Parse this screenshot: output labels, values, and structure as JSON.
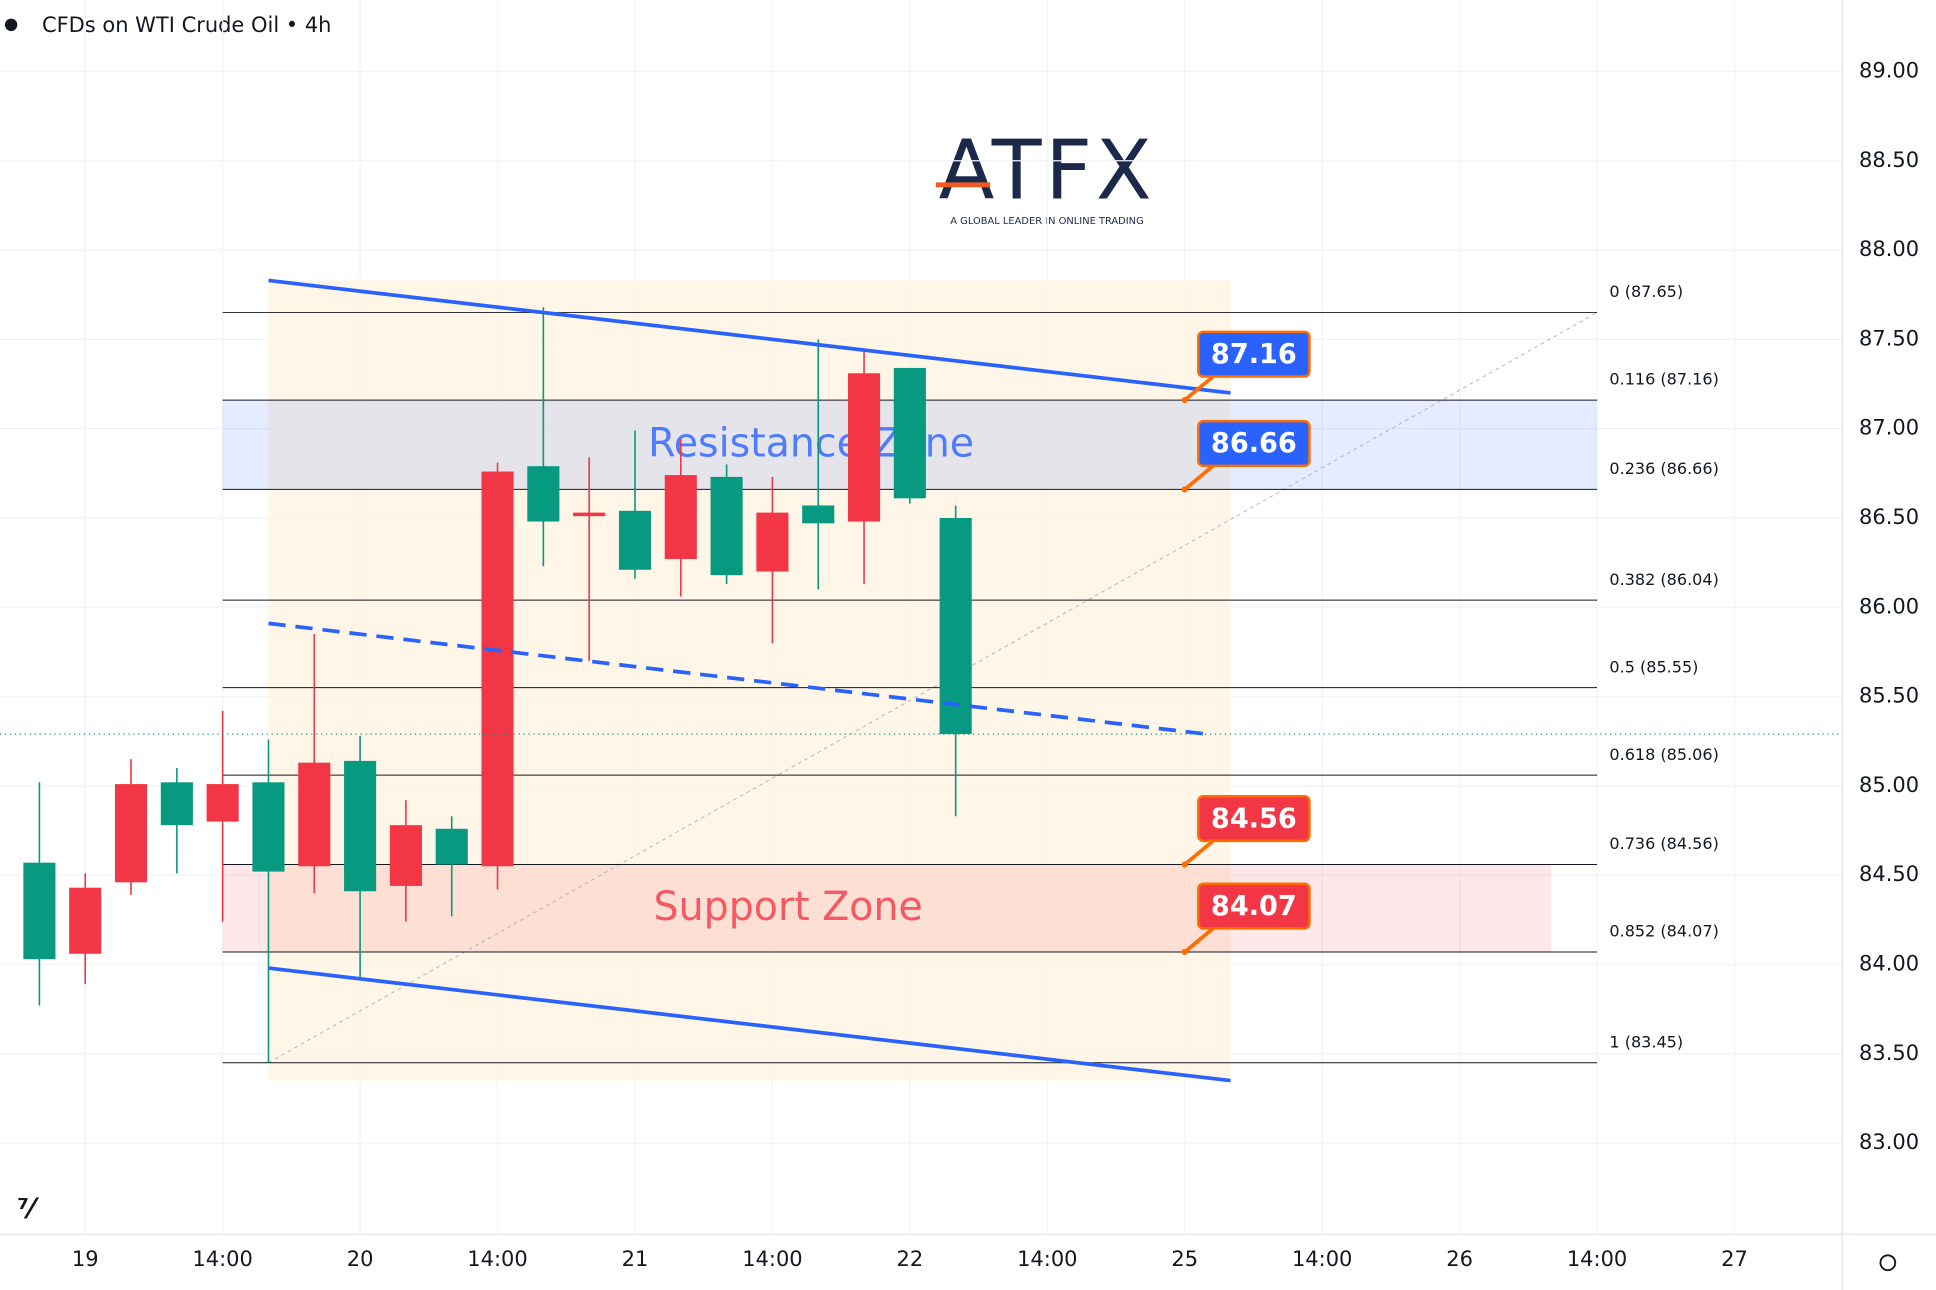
{
  "chart_data": {
    "type": "candlestick",
    "title": "CFDs on WTI Crude Oil • 4h",
    "logo": {
      "title": "ATFX",
      "tagline": "A GLOBAL LEADER IN ONLINE TRADING"
    },
    "xlim": [
      -0.86,
      39.35
    ],
    "ylim": [
      82.49,
      89.4
    ],
    "xticks": [
      {
        "value": 1,
        "label": "19"
      },
      {
        "value": 4,
        "label": "14:00"
      },
      {
        "value": 7,
        "label": "20"
      },
      {
        "value": 10,
        "label": "14:00"
      },
      {
        "value": 13,
        "label": "21"
      },
      {
        "value": 16,
        "label": "14:00"
      },
      {
        "value": 19,
        "label": "22"
      },
      {
        "value": 22,
        "label": "14:00"
      },
      {
        "value": 25,
        "label": "25"
      },
      {
        "value": 28,
        "label": "14:00"
      },
      {
        "value": 31,
        "label": "26"
      },
      {
        "value": 34,
        "label": "14:00"
      },
      {
        "value": 37,
        "label": "27"
      }
    ],
    "yticks": [
      {
        "value": 83,
        "label": "83.00"
      },
      {
        "value": 83.5,
        "label": "83.50"
      },
      {
        "value": 84,
        "label": "84.00"
      },
      {
        "value": 84.5,
        "label": "84.50"
      },
      {
        "value": 85,
        "label": "85.00"
      },
      {
        "value": 85.5,
        "label": "85.50"
      },
      {
        "value": 86,
        "label": "86.00"
      },
      {
        "value": 86.5,
        "label": "86.50"
      },
      {
        "value": 87,
        "label": "87.00"
      },
      {
        "value": 87.5,
        "label": "87.50"
      },
      {
        "value": 88,
        "label": "88.00"
      },
      {
        "value": 88.5,
        "label": "88.50"
      },
      {
        "value": 89,
        "label": "89.00"
      }
    ],
    "up_color": "#089981",
    "down_color": "#f23645",
    "candles": {
      "x": [
        0,
        1,
        2,
        3,
        4,
        5,
        6,
        7,
        8,
        9,
        10,
        11,
        12,
        13,
        14,
        15,
        16,
        17,
        18,
        19,
        20
      ],
      "open": [
        84.03,
        84.43,
        85.01,
        84.78,
        85.01,
        84.52,
        85.13,
        84.41,
        84.78,
        84.56,
        86.76,
        86.48,
        86.53,
        86.21,
        86.74,
        86.18,
        86.53,
        86.47,
        87.31,
        86.61,
        85.29
      ],
      "high": [
        85.02,
        84.51,
        85.15,
        85.1,
        85.42,
        85.26,
        85.85,
        85.28,
        84.92,
        84.83,
        86.81,
        87.68,
        86.84,
        86.99,
        86.94,
        86.8,
        86.73,
        87.5,
        87.44,
        87.34,
        86.57
      ],
      "low": [
        83.77,
        83.89,
        84.39,
        84.51,
        84.24,
        83.45,
        84.4,
        83.92,
        84.24,
        84.27,
        84.42,
        86.23,
        85.7,
        86.16,
        86.06,
        86.13,
        85.8,
        86.1,
        86.13,
        86.58,
        84.83
      ],
      "close": [
        84.57,
        84.06,
        84.46,
        85.02,
        84.8,
        85.02,
        84.55,
        85.14,
        84.44,
        84.76,
        84.55,
        86.79,
        86.51,
        86.54,
        86.27,
        86.73,
        86.2,
        86.57,
        86.48,
        87.34,
        86.5
      ]
    },
    "fib": {
      "x": [
        4,
        34
      ],
      "levels": [
        {
          "value": 87.65,
          "label": "0 (87.65)"
        },
        {
          "value": 87.16,
          "label": "0.116 (87.16)"
        },
        {
          "value": 86.66,
          "label": "0.236 (86.66)"
        },
        {
          "value": 86.04,
          "label": "0.382 (86.04)"
        },
        {
          "value": 85.55,
          "label": "0.5 (85.55)"
        },
        {
          "value": 85.06,
          "label": "0.618 (85.06)"
        },
        {
          "value": 84.56,
          "label": "0.736 (84.56)"
        },
        {
          "value": 84.07,
          "label": "0.852 (84.07)"
        },
        {
          "value": 83.45,
          "label": "1 (83.45)"
        }
      ]
    },
    "zones": [
      {
        "label": "Resistance Zone",
        "y": [
          86.66,
          87.16
        ],
        "x": [
          4,
          34
        ],
        "color": "#2962ff"
      },
      {
        "label": "Support Zone",
        "y": [
          84.07,
          84.56
        ],
        "x": [
          4,
          33
        ],
        "color": "#f23645"
      }
    ],
    "trendlines": [
      {
        "x": [
          5,
          26
        ],
        "y": [
          87.83,
          87.2
        ],
        "dashed": false
      },
      {
        "x": [
          5,
          25.47
        ],
        "y": [
          85.91,
          85.29
        ],
        "dashed": true
      },
      {
        "x": [
          5,
          26
        ],
        "y": [
          83.98,
          83.35
        ],
        "dashed": false
      }
    ],
    "channel_color": "#2962ff",
    "callouts": {
      "x": 25,
      "values": [
        87.16,
        86.66,
        84.56,
        84.07
      ],
      "colors": [
        "#2962ff",
        "#2962ff",
        "#f23645",
        "#f23645"
      ]
    }
  }
}
